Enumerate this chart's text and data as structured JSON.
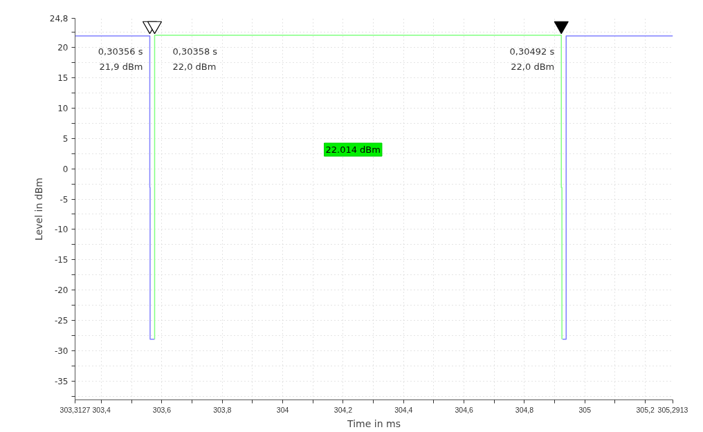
{
  "chart_data": {
    "type": "line",
    "xlabel": "Time in ms",
    "ylabel": "Level in dBm",
    "xlim": [
      303.3127,
      305.2913
    ],
    "ylim": [
      -38.1,
      24.8
    ],
    "xticks": [
      {
        "value": 303.3127,
        "label": "303,3127"
      },
      {
        "value": 303.4,
        "label": "303,4"
      },
      {
        "value": 303.5,
        "label": null
      },
      {
        "value": 303.6,
        "label": "303,6"
      },
      {
        "value": 303.7,
        "label": null
      },
      {
        "value": 303.8,
        "label": "303,8"
      },
      {
        "value": 303.9,
        "label": null
      },
      304,
      {
        "value": 304.1,
        "label": null
      },
      {
        "value": 304.2,
        "label": "304,2"
      },
      {
        "value": 304.3,
        "label": null
      },
      {
        "value": 304.4,
        "label": "304,4"
      },
      {
        "value": 304.5,
        "label": null
      },
      {
        "value": 304.6,
        "label": "304,6"
      },
      {
        "value": 304.7,
        "label": null
      },
      {
        "value": 304.8,
        "label": "304,8"
      },
      {
        "value": 304.9,
        "label": null
      },
      305,
      {
        "value": 305.1,
        "label": null
      },
      {
        "value": 305.2,
        "label": "305,2"
      },
      {
        "value": 305.2913,
        "label": "305,2913"
      }
    ],
    "yticks": [
      {
        "value": -37.5,
        "label": null
      },
      -35,
      {
        "value": -32.5,
        "label": null
      },
      -30,
      {
        "value": -27.5,
        "label": null
      },
      -25,
      {
        "value": -22.5,
        "label": null
      },
      -20,
      {
        "value": -17.5,
        "label": null
      },
      -15,
      {
        "value": -12.5,
        "label": null
      },
      -10,
      {
        "value": -7.5,
        "label": null
      },
      -5,
      {
        "value": -2.5,
        "label": null
      },
      0,
      {
        "value": 2.5,
        "label": null
      },
      5,
      {
        "value": 7.5,
        "label": null
      },
      10,
      {
        "value": 12.5,
        "label": null
      },
      15,
      {
        "value": 17.5,
        "label": null
      },
      20,
      {
        "value": 22.5,
        "label": null
      },
      {
        "value": 24.8,
        "label": "24,8"
      }
    ],
    "grid": true,
    "line_style": "solid",
    "marker": "none",
    "series": [
      {
        "type": "line",
        "color": "#8080ff",
        "x": [
          303.3127,
          303.56,
          303.56,
          303.561,
          303.561,
          303.576,
          304.0,
          304.926,
          304.938,
          304.938,
          305.2913
        ],
        "values": [
          21.9,
          21.9,
          -3.1,
          -3.1,
          -28.1,
          -28.1,
          null,
          -28.1,
          -28.1,
          21.9,
          21.9
        ]
      },
      {
        "type": "line",
        "color": "#80ff80",
        "x": [
          303.576,
          303.576,
          304.922,
          304.922,
          304.924,
          304.924
        ],
        "values": [
          -28.1,
          22.0,
          22.0,
          -3.1,
          -3.1,
          -28.1
        ]
      },
      {
        "type": "scatter",
        "marker": "triangle",
        "x": [
          303.56,
          303.576,
          304.922
        ],
        "values": [
          23.6,
          23.6,
          23.6
        ],
        "colors": [
          "#ffffff",
          "#ffffff",
          "#000000"
        ]
      }
    ],
    "annotations": [
      {
        "text": "0,30356 s\n21,9 dBm",
        "x": 303.56
      },
      {
        "text": "0,30358 s\n22,0 dBm",
        "x": 303.576
      },
      {
        "text": "0,30492 s\n22,0 dBm",
        "x": 304.922
      },
      "22.014 dBm"
    ]
  }
}
